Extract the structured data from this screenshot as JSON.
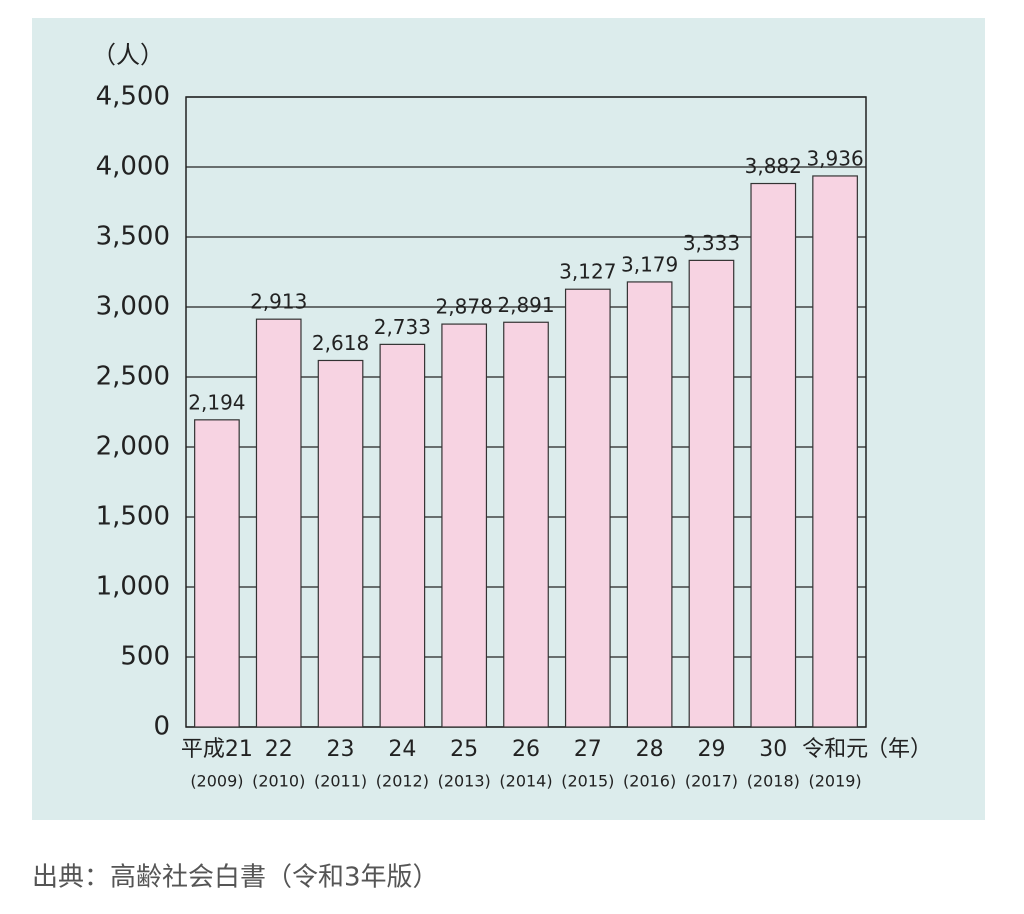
{
  "chart_data": {
    "type": "bar",
    "y_unit": "（人）",
    "x_unit": "（年）",
    "categories": [
      "平成21",
      "22",
      "23",
      "24",
      "25",
      "26",
      "27",
      "28",
      "29",
      "30",
      "令和元"
    ],
    "sub_categories": [
      "(2009)",
      "(2010)",
      "(2011)",
      "(2012)",
      "(2013)",
      "(2014)",
      "(2015)",
      "(2016)",
      "(2017)",
      "(2018)",
      "(2019)"
    ],
    "values": [
      2194,
      2913,
      2618,
      2733,
      2878,
      2891,
      3127,
      3179,
      3333,
      3882,
      3936
    ],
    "value_labels": [
      "2,194",
      "2,913",
      "2,618",
      "2,733",
      "2,878",
      "2,891",
      "3,127",
      "3,179",
      "3,333",
      "3,882",
      "3,936"
    ],
    "color": "#f7d3e2",
    "ylim": [
      0,
      4500
    ],
    "yticks": [
      0,
      500,
      {
        "value": 1000,
        "label": "1,000"
      },
      {
        "value": 1500,
        "label": "1,500"
      },
      {
        "value": 2000,
        "label": "2,000"
      },
      {
        "value": 2500,
        "label": "2,500"
      },
      {
        "value": 3000,
        "label": "3,000"
      },
      {
        "value": 3500,
        "label": "3,500"
      },
      {
        "value": 4000,
        "label": "4,000"
      },
      {
        "value": 4500,
        "label": "4,500"
      }
    ],
    "grid": true,
    "source": "出典：高齢社会白書（令和3年版）"
  }
}
